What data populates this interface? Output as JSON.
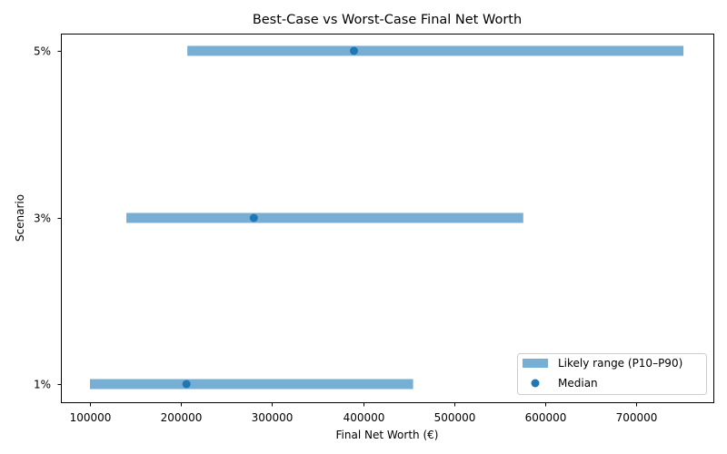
{
  "chart_data": {
    "type": "bar",
    "orientation": "horizontal-range",
    "title": "Best-Case vs Worst-Case Final Net Worth",
    "xlabel": "Final Net Worth (€)",
    "ylabel": "Scenario",
    "categories": [
      "1%",
      "3%",
      "5%"
    ],
    "series": [
      {
        "name": "Likely range (P10–P90)",
        "kind": "range",
        "low": [
          100000,
          140000,
          207000
        ],
        "high": [
          455000,
          576000,
          752000
        ],
        "color": "#77aed3"
      },
      {
        "name": "Median",
        "kind": "scatter",
        "values": [
          206000,
          280000,
          390000
        ],
        "color": "#1f77b4"
      }
    ],
    "xlim": [
      67000,
      785000
    ],
    "xticks": [
      100000,
      200000,
      300000,
      400000,
      500000,
      600000,
      700000
    ],
    "xtick_labels": [
      "100000",
      "200000",
      "300000",
      "400000",
      "500000",
      "600000",
      "700000"
    ],
    "grid": false,
    "legend_position": "lower right"
  },
  "legend": {
    "range_label": "Likely range (P10–P90)",
    "median_label": "Median"
  }
}
